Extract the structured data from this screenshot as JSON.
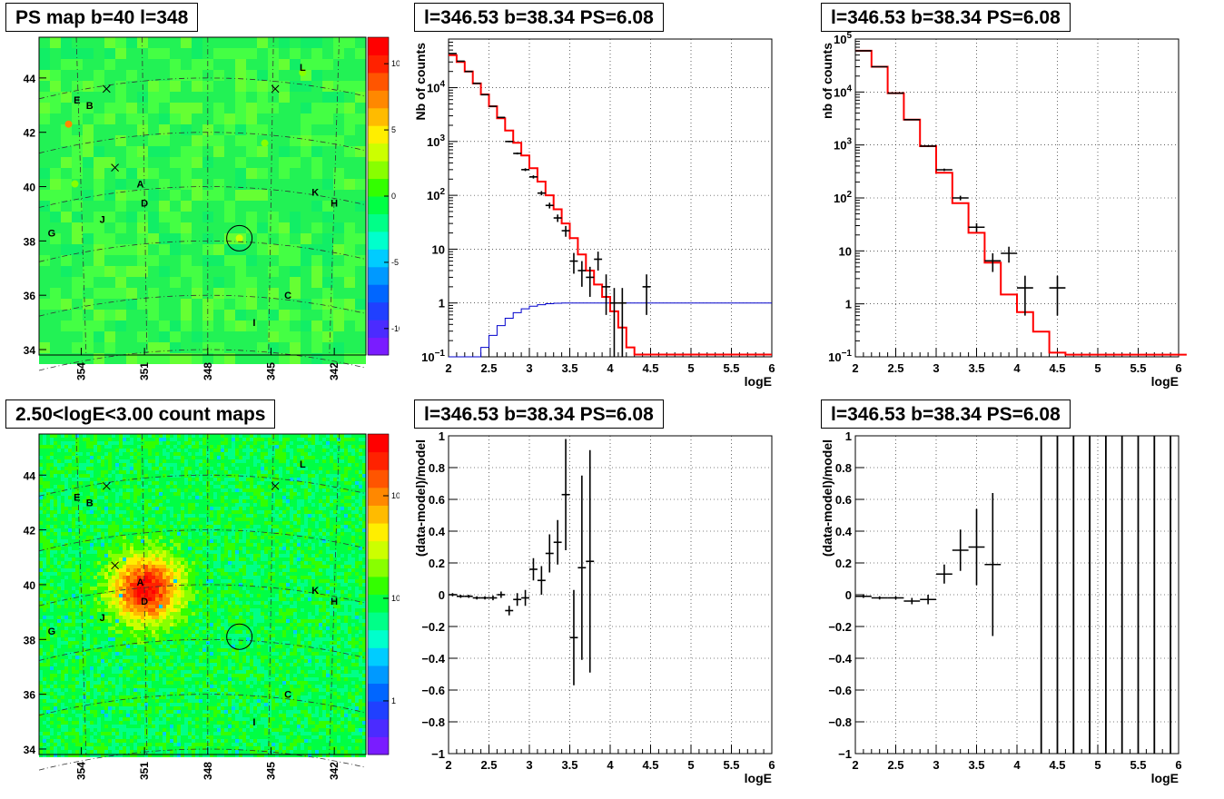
{
  "panels": {
    "ps_map": {
      "title": "PS map b=40 l=348"
    },
    "count_map": {
      "title": "2.50<logE<3.00 count maps"
    },
    "spec1": {
      "title": "l=346.53 b=38.34 PS=6.08"
    },
    "spec2": {
      "title": "l=346.53 b=38.34 PS=6.08"
    },
    "res1": {
      "title": "l=346.53 b=38.34 PS=6.08"
    },
    "res2": {
      "title": "l=346.53 b=38.34 PS=6.08"
    }
  },
  "map_axes": {
    "b_ticks": [
      "34",
      "36",
      "38",
      "40",
      "42",
      "44"
    ],
    "l_ticks": [
      "354",
      "351",
      "348",
      "345",
      "342"
    ],
    "source_labels": [
      "A",
      "B",
      "C",
      "D",
      "E",
      "G",
      "H",
      "I",
      "J",
      "K",
      "L"
    ]
  },
  "colors": {
    "data": "#000000",
    "model": "#ff0000",
    "background_model": "#0000cc"
  },
  "chart_data": [
    {
      "type": "heatmap",
      "title": "PS map b=40 l=348",
      "xlabel": "",
      "ylabel": "",
      "xlim": [
        356,
        340.5
      ],
      "ylim": [
        33.8,
        45.5
      ],
      "colorbar_ticks": [
        "10",
        "5",
        "0",
        "-5",
        "-10"
      ],
      "colorbar_range": [
        -12,
        12
      ],
      "circle": {
        "l": 346.5,
        "b": 38.1
      },
      "crosses": [
        {
          "l": 352.8,
          "b": 43.6
        },
        {
          "l": 352.4,
          "b": 40.7
        },
        {
          "l": 344.8,
          "b": 43.6
        }
      ]
    },
    {
      "type": "heatmap",
      "title": "2.50<logE<3.00 count maps",
      "xlabel": "",
      "ylabel": "",
      "xlim": [
        356,
        340.5
      ],
      "ylim": [
        33.8,
        45.5
      ],
      "colorbar_ticks": [
        "10²",
        "10",
        "1"
      ],
      "colorbar_scale": "log",
      "colorbar_range": [
        0.3,
        400
      ],
      "circle": {
        "l": 346.5,
        "b": 38.1
      },
      "hotspot": {
        "l": 351.0,
        "b": 39.9
      }
    },
    {
      "type": "line",
      "title": "l=346.53 b=38.34 PS=6.08",
      "xlabel": "logE",
      "ylabel": "Nb of counts",
      "xlim": [
        2,
        6
      ],
      "ylim": [
        0.1,
        80000
      ],
      "yscale": "log",
      "grid": true,
      "x_ticks": [
        "2",
        "2.5",
        "3",
        "3.5",
        "4",
        "4.5",
        "5",
        "5.5",
        "6"
      ],
      "y_ticks": [
        "10⁻¹",
        "1",
        "10",
        "10²",
        "10³",
        "10⁴"
      ],
      "bin_width": 0.1,
      "model_step": [
        {
          "x": 2.0,
          "y": 40000
        },
        {
          "x": 2.1,
          "y": 30000
        },
        {
          "x": 2.2,
          "y": 20000
        },
        {
          "x": 2.3,
          "y": 12000
        },
        {
          "x": 2.4,
          "y": 7500
        },
        {
          "x": 2.5,
          "y": 4500
        },
        {
          "x": 2.6,
          "y": 2700
        },
        {
          "x": 2.7,
          "y": 1600
        },
        {
          "x": 2.8,
          "y": 950
        },
        {
          "x": 2.9,
          "y": 550
        },
        {
          "x": 3.0,
          "y": 320
        },
        {
          "x": 3.1,
          "y": 180
        },
        {
          "x": 3.2,
          "y": 100
        },
        {
          "x": 3.3,
          "y": 55
        },
        {
          "x": 3.4,
          "y": 30
        },
        {
          "x": 3.5,
          "y": 16
        },
        {
          "x": 3.6,
          "y": 8
        },
        {
          "x": 3.7,
          "y": 4
        },
        {
          "x": 3.8,
          "y": 2.2
        },
        {
          "x": 3.9,
          "y": 1.3
        },
        {
          "x": 4.0,
          "y": 0.7
        },
        {
          "x": 4.1,
          "y": 0.35
        },
        {
          "x": 4.2,
          "y": 0.15
        },
        {
          "x": 4.3,
          "y": 0.11
        },
        {
          "x": 4.4,
          "y": 0.11
        },
        {
          "x": 4.5,
          "y": 0.11
        },
        {
          "x": 5.0,
          "y": 0.11
        },
        {
          "x": 5.5,
          "y": 0.11
        },
        {
          "x": 5.9,
          "y": 0.11
        }
      ],
      "background_step": [
        {
          "x": 2.0,
          "y": 0.05
        },
        {
          "x": 2.3,
          "y": 0.1
        },
        {
          "x": 2.4,
          "y": 0.15
        },
        {
          "x": 2.5,
          "y": 0.25
        },
        {
          "x": 2.6,
          "y": 0.38
        },
        {
          "x": 2.7,
          "y": 0.52
        },
        {
          "x": 2.8,
          "y": 0.66
        },
        {
          "x": 2.9,
          "y": 0.78
        },
        {
          "x": 3.0,
          "y": 0.87
        },
        {
          "x": 3.1,
          "y": 0.93
        },
        {
          "x": 3.2,
          "y": 0.97
        },
        {
          "x": 3.3,
          "y": 0.99
        },
        {
          "x": 3.4,
          "y": 1.0
        },
        {
          "x": 3.5,
          "y": 1.0
        },
        {
          "x": 5.9,
          "y": 1.0
        }
      ],
      "points": [
        {
          "x": 2.05,
          "y": 43000,
          "err": 200
        },
        {
          "x": 2.15,
          "y": 31000,
          "err": 180
        },
        {
          "x": 2.25,
          "y": 20000,
          "err": 140
        },
        {
          "x": 2.35,
          "y": 12000,
          "err": 110
        },
        {
          "x": 2.45,
          "y": 7400,
          "err": 90
        },
        {
          "x": 2.55,
          "y": 4500,
          "err": 70
        },
        {
          "x": 2.65,
          "y": 2800,
          "err": 55
        },
        {
          "x": 2.75,
          "y": 1000,
          "err": 32
        },
        {
          "x": 2.85,
          "y": 600,
          "err": 25
        },
        {
          "x": 2.95,
          "y": 300,
          "err": 18
        },
        {
          "x": 3.05,
          "y": 220,
          "err": 15
        },
        {
          "x": 3.15,
          "y": 110,
          "err": 10
        },
        {
          "x": 3.25,
          "y": 65,
          "err": 8
        },
        {
          "x": 3.35,
          "y": 38,
          "err": 6
        },
        {
          "x": 3.45,
          "y": 22,
          "err": 5
        },
        {
          "x": 3.55,
          "y": 6,
          "err": 2.5
        },
        {
          "x": 3.65,
          "y": 4,
          "err": 2
        },
        {
          "x": 3.75,
          "y": 3,
          "err": 1.7
        },
        {
          "x": 3.85,
          "y": 6.5,
          "err": 2.5
        },
        {
          "x": 3.95,
          "y": 2,
          "err": 1.4
        },
        {
          "x": 4.05,
          "y": 1,
          "err": 0.9
        },
        {
          "x": 4.15,
          "y": 1,
          "err": 0.9
        },
        {
          "x": 4.45,
          "y": 2,
          "err": 1.4
        }
      ]
    },
    {
      "type": "line",
      "title": "l=346.53 b=38.34 PS=6.08",
      "xlabel": "logE",
      "ylabel": "nb of counts",
      "xlim": [
        2,
        6
      ],
      "ylim": [
        0.1,
        100000
      ],
      "yscale": "log",
      "grid": true,
      "x_ticks": [
        "2",
        "2.5",
        "3",
        "3.5",
        "4",
        "4.5",
        "5",
        "5.5",
        "6"
      ],
      "y_ticks": [
        "10⁻¹",
        "1",
        "10",
        "10²",
        "10³",
        "10⁴",
        "10⁵"
      ],
      "bin_width": 0.2,
      "model_step": [
        {
          "x": 2.0,
          "y": 60000
        },
        {
          "x": 2.2,
          "y": 30000
        },
        {
          "x": 2.4,
          "y": 9500
        },
        {
          "x": 2.6,
          "y": 3000
        },
        {
          "x": 2.8,
          "y": 950
        },
        {
          "x": 3.0,
          "y": 300
        },
        {
          "x": 3.2,
          "y": 80
        },
        {
          "x": 3.4,
          "y": 22
        },
        {
          "x": 3.6,
          "y": 6
        },
        {
          "x": 3.8,
          "y": 1.5
        },
        {
          "x": 4.0,
          "y": 0.7
        },
        {
          "x": 4.2,
          "y": 0.3
        },
        {
          "x": 4.4,
          "y": 0.12
        },
        {
          "x": 4.6,
          "y": 0.11
        },
        {
          "x": 5.9,
          "y": 0.11
        }
      ],
      "points": [
        {
          "x": 2.1,
          "y": 60000,
          "err": 250
        },
        {
          "x": 2.3,
          "y": 30000,
          "err": 170
        },
        {
          "x": 2.5,
          "y": 9500,
          "err": 100
        },
        {
          "x": 2.7,
          "y": 3000,
          "err": 55
        },
        {
          "x": 2.9,
          "y": 950,
          "err": 30
        },
        {
          "x": 3.1,
          "y": 340,
          "err": 18
        },
        {
          "x": 3.3,
          "y": 100,
          "err": 10
        },
        {
          "x": 3.5,
          "y": 28,
          "err": 5.3
        },
        {
          "x": 3.7,
          "y": 6.5,
          "err": 2.5
        },
        {
          "x": 3.9,
          "y": 9,
          "err": 3
        },
        {
          "x": 4.1,
          "y": 2,
          "err": 1.4
        },
        {
          "x": 4.5,
          "y": 2,
          "err": 1.4
        }
      ]
    },
    {
      "type": "scatter",
      "title": "l=346.53 b=38.34 PS=6.08",
      "xlabel": "logE",
      "ylabel": "(data-model)/model",
      "xlim": [
        2,
        6
      ],
      "ylim": [
        -1,
        1
      ],
      "grid": true,
      "x_ticks": [
        "2",
        "2.5",
        "3",
        "3.5",
        "4",
        "4.5",
        "5",
        "5.5",
        "6"
      ],
      "y_ticks": [
        "−1",
        "−0.8",
        "−0.6",
        "−0.4",
        "−0.2",
        "0",
        "0.2",
        "0.4",
        "0.6",
        "0.8",
        "1"
      ],
      "bin_width": 0.1,
      "points": [
        {
          "x": 2.05,
          "y": 0.0,
          "err": 0.01
        },
        {
          "x": 2.15,
          "y": -0.01,
          "err": 0.01
        },
        {
          "x": 2.25,
          "y": -0.01,
          "err": 0.01
        },
        {
          "x": 2.35,
          "y": -0.02,
          "err": 0.01
        },
        {
          "x": 2.45,
          "y": -0.02,
          "err": 0.01
        },
        {
          "x": 2.55,
          "y": -0.02,
          "err": 0.015
        },
        {
          "x": 2.65,
          "y": 0.0,
          "err": 0.02
        },
        {
          "x": 2.75,
          "y": -0.1,
          "err": 0.03
        },
        {
          "x": 2.85,
          "y": -0.03,
          "err": 0.04
        },
        {
          "x": 2.95,
          "y": -0.02,
          "err": 0.05
        },
        {
          "x": 3.05,
          "y": 0.16,
          "err": 0.07
        },
        {
          "x": 3.15,
          "y": 0.09,
          "err": 0.09
        },
        {
          "x": 3.25,
          "y": 0.26,
          "err": 0.12
        },
        {
          "x": 3.35,
          "y": 0.33,
          "err": 0.14
        },
        {
          "x": 3.45,
          "y": 0.63,
          "err": 0.35
        },
        {
          "x": 3.55,
          "y": -0.27,
          "err": 0.3
        },
        {
          "x": 3.65,
          "y": 0.17,
          "err": 0.58
        },
        {
          "x": 3.75,
          "y": 0.21,
          "err": 0.7
        }
      ]
    },
    {
      "type": "scatter",
      "title": "l=346.53 b=38.34 PS=6.08",
      "xlabel": "logE",
      "ylabel": "(data-model)/model",
      "xlim": [
        2,
        6
      ],
      "ylim": [
        -1,
        1
      ],
      "grid": true,
      "x_ticks": [
        "2",
        "2.5",
        "3",
        "3.5",
        "4",
        "4.5",
        "5",
        "5.5",
        "6"
      ],
      "y_ticks": [
        "−1",
        "−0.8",
        "−0.6",
        "−0.4",
        "−0.2",
        "0",
        "0.2",
        "0.4",
        "0.6",
        "0.8",
        "1"
      ],
      "bin_width": 0.2,
      "points": [
        {
          "x": 2.1,
          "y": -0.01,
          "err": 0.01
        },
        {
          "x": 2.3,
          "y": -0.02,
          "err": 0.01
        },
        {
          "x": 2.5,
          "y": -0.02,
          "err": 0.01
        },
        {
          "x": 2.7,
          "y": -0.04,
          "err": 0.02
        },
        {
          "x": 2.9,
          "y": -0.03,
          "err": 0.03
        },
        {
          "x": 3.1,
          "y": 0.13,
          "err": 0.06
        },
        {
          "x": 3.3,
          "y": 0.28,
          "err": 0.13
        },
        {
          "x": 3.5,
          "y": 0.3,
          "err": 0.24
        },
        {
          "x": 3.7,
          "y": 0.19,
          "err": 0.45
        }
      ],
      "vertical_bars_x": [
        4.3,
        4.5,
        4.7,
        4.9,
        5.1,
        5.3,
        5.5,
        5.7,
        5.9
      ]
    }
  ]
}
